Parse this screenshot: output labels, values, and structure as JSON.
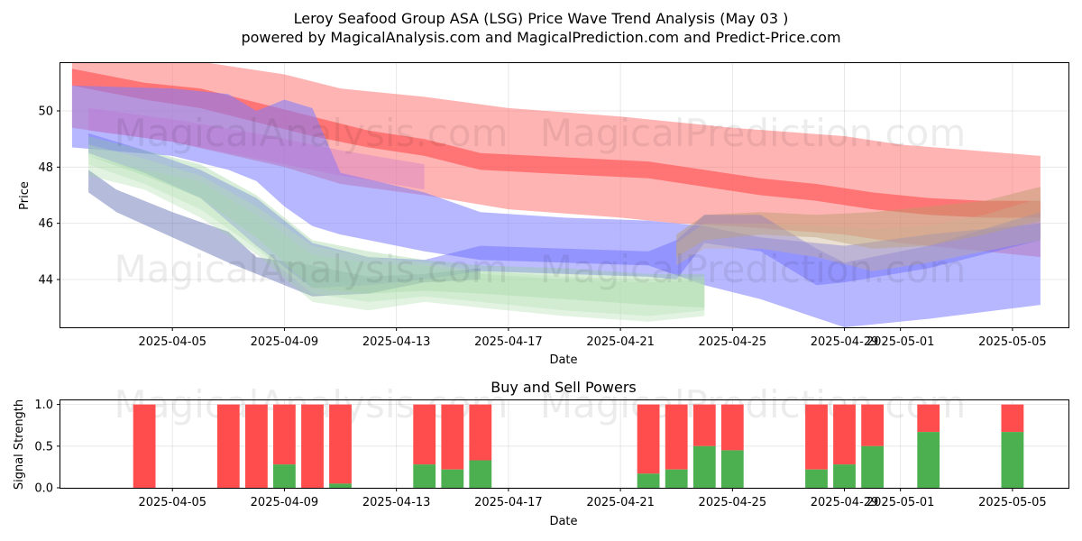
{
  "chart_data": [
    {
      "type": "area",
      "title": "Leroy Seafood Group ASA (LSG) Price Wave Trend Analysis (May 03 )",
      "subtitle": "powered by MagicalAnalysis.com and MagicalPrediction.com and Predict-Price.com",
      "xlabel": "Date",
      "ylabel": "Price",
      "x_range": [
        "2025-04-01",
        "2025-05-07"
      ],
      "ylim": [
        42.3,
        51.7
      ],
      "x_ticks": [
        {
          "date": "2025-04-05",
          "label": "2025-04-05"
        },
        {
          "date": "2025-04-09",
          "label": "2025-04-09"
        },
        {
          "date": "2025-04-13",
          "label": "2025-04-13"
        },
        {
          "date": "2025-04-17",
          "label": "2025-04-17"
        },
        {
          "date": "2025-04-21",
          "label": "2025-04-21"
        },
        {
          "date": "2025-04-25",
          "label": "2025-04-25"
        },
        {
          "date": "2025-04-29",
          "label": "2025-04-29"
        },
        {
          "date": "2025-05-01",
          "label": "2025-05-01"
        },
        {
          "date": "2025-05-05",
          "label": "2025-05-05"
        }
      ],
      "y_ticks": [
        44,
        46,
        48,
        50
      ],
      "grid": true,
      "watermarks": [
        "MagicalAnalysis.com",
        "MagicalPrediction.com"
      ],
      "series": [
        {
          "name": "red-upper-band",
          "color": "#ff6a6a",
          "opacity": 0.5,
          "x": [
            "2025-04-01T10",
            "2025-04-05",
            "2025-04-09",
            "2025-04-11",
            "2025-04-14",
            "2025-04-17",
            "2025-04-21",
            "2025-04-23",
            "2025-04-25",
            "2025-04-29",
            "2025-05-01",
            "2025-05-06"
          ],
          "upper": [
            51.8,
            51.9,
            51.3,
            50.8,
            50.5,
            50.1,
            49.8,
            49.6,
            49.4,
            49.1,
            48.8,
            48.4
          ],
          "lower": [
            49.4,
            48.9,
            48.0,
            47.4,
            47.0,
            46.5,
            46.2,
            46.0,
            45.9,
            45.6,
            45.3,
            44.8
          ]
        },
        {
          "name": "red-center-line",
          "color": "#ff5a5a",
          "opacity": 0.7,
          "x": [
            "2025-04-01T10",
            "2025-04-04",
            "2025-04-06",
            "2025-04-08",
            "2025-04-10",
            "2025-04-12",
            "2025-04-14",
            "2025-04-16",
            "2025-04-18",
            "2025-04-20",
            "2025-04-22",
            "2025-04-24",
            "2025-04-26",
            "2025-04-28",
            "2025-04-30",
            "2025-05-02",
            "2025-05-04",
            "2025-05-06"
          ],
          "upper": [
            51.5,
            51.0,
            50.8,
            50.3,
            49.8,
            49.3,
            49.0,
            48.5,
            48.4,
            48.3,
            48.2,
            47.9,
            47.6,
            47.4,
            47.1,
            46.9,
            46.8,
            46.8
          ],
          "lower": [
            50.9,
            50.4,
            50.1,
            49.6,
            49.1,
            48.7,
            48.4,
            47.9,
            47.8,
            47.7,
            47.6,
            47.3,
            47.0,
            46.8,
            46.5,
            46.3,
            46.2,
            46.2
          ]
        },
        {
          "name": "blue-upper-band",
          "color": "#7b7bff",
          "opacity": 0.55,
          "x": [
            "2025-04-01T10",
            "2025-04-05",
            "2025-04-07",
            "2025-04-08",
            "2025-04-09",
            "2025-04-10",
            "2025-04-11",
            "2025-04-14",
            "2025-04-16",
            "2025-04-19",
            "2025-04-22",
            "2025-04-24",
            "2025-04-26",
            "2025-04-29",
            "2025-05-02",
            "2025-05-06"
          ],
          "upper": [
            50.9,
            50.8,
            50.6,
            50.0,
            50.4,
            50.1,
            47.8,
            47.1,
            46.4,
            46.2,
            46.1,
            45.9,
            45.5,
            45.2,
            45.6,
            46.0
          ],
          "lower": [
            48.7,
            48.4,
            47.9,
            47.5,
            46.6,
            45.9,
            45.6,
            45.0,
            44.7,
            44.6,
            44.5,
            43.8,
            43.3,
            42.3,
            42.6,
            43.1
          ]
        },
        {
          "name": "blue-mid-band",
          "color": "#6b6bff",
          "opacity": 0.45,
          "x": [
            "2025-04-02",
            "2025-04-04",
            "2025-04-06",
            "2025-04-08",
            "2025-04-10",
            "2025-04-12",
            "2025-04-14",
            "2025-04-16",
            "2025-04-19",
            "2025-04-22",
            "2025-04-23",
            "2025-04-24",
            "2025-04-26",
            "2025-04-28",
            "2025-04-29",
            "2025-05-02",
            "2025-05-06"
          ],
          "upper": [
            49.2,
            48.6,
            47.9,
            46.9,
            45.3,
            44.8,
            44.7,
            45.2,
            45.1,
            45.0,
            45.4,
            46.3,
            46.3,
            45.1,
            44.6,
            45.2,
            46.4
          ],
          "lower": [
            48.5,
            47.8,
            46.9,
            45.2,
            43.7,
            43.8,
            44.0,
            44.3,
            44.2,
            44.1,
            44.0,
            45.3,
            45.0,
            43.8,
            43.9,
            44.4,
            45.4
          ]
        },
        {
          "name": "gray-blue-band",
          "color": "#6a78b8",
          "opacity": 0.5,
          "x": [
            "2025-04-02",
            "2025-04-03",
            "2025-04-05",
            "2025-04-07",
            "2025-04-08",
            "2025-04-10",
            "2025-04-12",
            "2025-04-14",
            "2025-04-16"
          ],
          "upper": [
            47.9,
            47.2,
            46.4,
            45.7,
            44.8,
            44.5,
            44.1,
            44.2,
            44.4
          ],
          "lower": [
            47.1,
            46.4,
            45.5,
            44.6,
            44.2,
            43.4,
            43.5,
            43.9,
            44.0
          ]
        },
        {
          "name": "green-band-1",
          "color": "#8fcf8f",
          "opacity": 0.35,
          "x": [
            "2025-04-02",
            "2025-04-04",
            "2025-04-06",
            "2025-04-08",
            "2025-04-10",
            "2025-04-12",
            "2025-04-14",
            "2025-04-16",
            "2025-04-19",
            "2025-04-22",
            "2025-04-24"
          ],
          "upper": [
            49.1,
            48.6,
            48.1,
            47.0,
            45.4,
            45.0,
            44.7,
            44.5,
            44.4,
            44.2,
            44.2
          ],
          "lower": [
            48.4,
            47.7,
            46.9,
            45.5,
            43.7,
            43.5,
            43.6,
            43.5,
            43.3,
            43.1,
            43.0
          ]
        },
        {
          "name": "green-band-2",
          "color": "#9fd69f",
          "opacity": 0.3,
          "x": [
            "2025-04-02",
            "2025-04-04",
            "2025-04-06",
            "2025-04-08",
            "2025-04-10",
            "2025-04-12",
            "2025-04-14",
            "2025-04-16",
            "2025-04-19",
            "2025-04-22",
            "2025-04-24"
          ],
          "upper": [
            48.4,
            47.9,
            47.5,
            46.3,
            44.9,
            44.6,
            44.5,
            44.2,
            44.0,
            43.9,
            44.0
          ],
          "lower": [
            47.7,
            47.2,
            46.2,
            44.9,
            43.2,
            42.9,
            43.2,
            43.0,
            42.7,
            42.5,
            42.7
          ]
        },
        {
          "name": "green-band-3",
          "color": "#b5e0b5",
          "opacity": 0.35,
          "x": [
            "2025-04-02",
            "2025-04-04",
            "2025-04-06",
            "2025-04-08",
            "2025-04-10",
            "2025-04-12",
            "2025-04-14",
            "2025-04-16",
            "2025-04-19",
            "2025-04-22",
            "2025-04-24"
          ],
          "upper": [
            48.8,
            48.3,
            47.7,
            46.6,
            45.2,
            44.8,
            44.6,
            44.3,
            44.1,
            44.0,
            44.1
          ],
          "lower": [
            48.1,
            47.4,
            46.5,
            45.1,
            43.5,
            43.2,
            43.4,
            43.2,
            42.9,
            42.7,
            42.9
          ]
        },
        {
          "name": "brown-band",
          "color": "#b89a6a",
          "opacity": 0.45,
          "x": [
            "2025-04-23",
            "2025-04-24",
            "2025-04-26",
            "2025-04-28",
            "2025-04-30",
            "2025-05-02",
            "2025-05-04",
            "2025-05-06"
          ],
          "upper": [
            45.6,
            46.3,
            46.4,
            46.3,
            46.4,
            46.6,
            46.8,
            47.3
          ],
          "lower": [
            44.8,
            45.4,
            45.6,
            45.5,
            45.1,
            45.2,
            45.6,
            46.1
          ]
        },
        {
          "name": "tan-band",
          "color": "#c8b090",
          "opacity": 0.4,
          "x": [
            "2025-04-23",
            "2025-04-24",
            "2025-04-26",
            "2025-04-28",
            "2025-04-30",
            "2025-05-02",
            "2025-05-04",
            "2025-05-06"
          ],
          "upper": [
            45.3,
            46.0,
            46.0,
            45.9,
            45.8,
            45.9,
            46.3,
            46.9
          ],
          "lower": [
            44.5,
            45.1,
            45.1,
            44.8,
            44.3,
            44.6,
            45.0,
            45.4
          ]
        },
        {
          "name": "violet-end-band",
          "color": "#c06ad0",
          "opacity": 0.3,
          "x": [
            "2025-04-02",
            "2025-04-05",
            "2025-04-08",
            "2025-04-11",
            "2025-04-14"
          ],
          "upper": [
            50.1,
            49.7,
            49.2,
            48.6,
            48.1
          ],
          "lower": [
            49.3,
            48.9,
            48.3,
            47.7,
            47.2
          ]
        }
      ]
    },
    {
      "type": "bar",
      "title": "Buy and Sell Powers",
      "xlabel": "Date",
      "ylabel": "Signal Strength",
      "ylim": [
        0,
        1.05
      ],
      "x_range": [
        "2025-04-01",
        "2025-05-07"
      ],
      "x_ticks": [
        {
          "date": "2025-04-05",
          "label": "2025-04-05"
        },
        {
          "date": "2025-04-09",
          "label": "2025-04-09"
        },
        {
          "date": "2025-04-13",
          "label": "2025-04-13"
        },
        {
          "date": "2025-04-17",
          "label": "2025-04-17"
        },
        {
          "date": "2025-04-21",
          "label": "2025-04-21"
        },
        {
          "date": "2025-04-25",
          "label": "2025-04-25"
        },
        {
          "date": "2025-04-29",
          "label": "2025-04-29"
        },
        {
          "date": "2025-05-01",
          "label": "2025-05-01"
        },
        {
          "date": "2025-05-05",
          "label": "2025-05-05"
        }
      ],
      "y_ticks": [
        {
          "value": 0.0,
          "label": "0.0"
        },
        {
          "value": 0.5,
          "label": "0.5"
        },
        {
          "value": 1.0,
          "label": "1.0"
        }
      ],
      "grid": true,
      "buy_color": "#4caf50",
      "sell_color": "#ff4d4d",
      "bars": [
        {
          "date": "2025-04-04",
          "buy": 0.0,
          "total": 1.0
        },
        {
          "date": "2025-04-07",
          "buy": 0.0,
          "total": 1.0
        },
        {
          "date": "2025-04-08",
          "buy": 0.0,
          "total": 1.0
        },
        {
          "date": "2025-04-09",
          "buy": 0.28,
          "total": 1.0
        },
        {
          "date": "2025-04-10",
          "buy": 0.0,
          "total": 1.0
        },
        {
          "date": "2025-04-11",
          "buy": 0.05,
          "total": 1.0
        },
        {
          "date": "2025-04-14",
          "buy": 0.28,
          "total": 1.0
        },
        {
          "date": "2025-04-15",
          "buy": 0.22,
          "total": 1.0
        },
        {
          "date": "2025-04-16",
          "buy": 0.33,
          "total": 1.0
        },
        {
          "date": "2025-04-22",
          "buy": 0.17,
          "total": 1.0
        },
        {
          "date": "2025-04-23",
          "buy": 0.22,
          "total": 1.0
        },
        {
          "date": "2025-04-24",
          "buy": 0.5,
          "total": 1.0
        },
        {
          "date": "2025-04-25",
          "buy": 0.45,
          "total": 1.0
        },
        {
          "date": "2025-04-28",
          "buy": 0.22,
          "total": 1.0
        },
        {
          "date": "2025-04-29",
          "buy": 0.28,
          "total": 1.0
        },
        {
          "date": "2025-04-30",
          "buy": 0.5,
          "total": 1.0
        },
        {
          "date": "2025-05-02",
          "buy": 0.67,
          "total": 1.0
        },
        {
          "date": "2025-05-05",
          "buy": 0.67,
          "total": 1.0
        }
      ],
      "watermarks": [
        "MagicalAnalysis.com",
        "MagicalPrediction.com"
      ]
    }
  ]
}
